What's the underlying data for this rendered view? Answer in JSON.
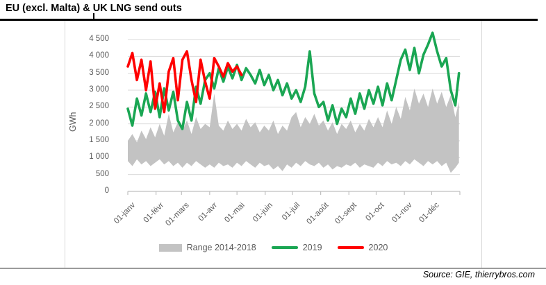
{
  "title": "EU (excl. Malta) & UK LNG send outs",
  "source_note": "Source: GIE, thierrybros.com",
  "colors": {
    "grid": "#D9D9D9",
    "axis": "#BFBFBF",
    "labels": "#595959",
    "band": "#C3C3C3",
    "green_2019": "#1AA653",
    "red_2020": "#FF0000",
    "title_rule": "#000000",
    "frame": "#D9D9D9",
    "bottom_rule": "#9B9B9B"
  },
  "y_axis": {
    "label": "GWh",
    "ticks": [
      "4 500",
      "4 000",
      "3 500",
      "3 000",
      "2 500",
      "2 000",
      "1 500",
      "1 000",
      "500",
      "0"
    ]
  },
  "x_axis": {
    "ticks": [
      "01-janv",
      "01-févr",
      "01-mars",
      "01-avr",
      "01-mai",
      "01-juin",
      "01-juil",
      "01-août",
      "01-sept",
      "01-oct",
      "01-nov",
      "01-déc"
    ]
  },
  "legend": [
    {
      "label": "Range 2014-2018",
      "color": "#C3C3C3",
      "type": "band"
    },
    {
      "label": "2019",
      "color": "#1AA653",
      "type": "line"
    },
    {
      "label": "2020",
      "color": "#FF0000",
      "type": "line"
    }
  ],
  "chart_data": {
    "type": "line",
    "title": "EU (excl. Malta) & UK LNG send outs",
    "xlabel": "",
    "ylabel": "GWh",
    "ylim": [
      0,
      4750
    ],
    "y_tick_step": 500,
    "grid": "horizontal",
    "legend_position": "bottom",
    "x_unit": "day_of_year",
    "x_tick_labels": [
      "01-janv",
      "01-févr",
      "01-mars",
      "01-avr",
      "01-mai",
      "01-juin",
      "01-juil",
      "01-août",
      "01-sept",
      "01-oct",
      "01-nov",
      "01-déc"
    ],
    "x_tick_days": [
      1,
      32,
      60,
      91,
      121,
      152,
      182,
      213,
      244,
      274,
      305,
      335,
      366
    ],
    "days": [
      1,
      6,
      11,
      16,
      21,
      26,
      31,
      36,
      41,
      46,
      51,
      56,
      61,
      66,
      71,
      76,
      81,
      86,
      91,
      96,
      101,
      106,
      111,
      116,
      121,
      126,
      131,
      136,
      141,
      146,
      151,
      156,
      161,
      166,
      171,
      176,
      181,
      186,
      191,
      196,
      201,
      206,
      211,
      216,
      221,
      226,
      231,
      236,
      241,
      246,
      251,
      256,
      261,
      266,
      271,
      276,
      281,
      286,
      291,
      296,
      301,
      306,
      311,
      316,
      321,
      326,
      331,
      336,
      341,
      346,
      351,
      356,
      361,
      365
    ],
    "series": [
      {
        "name": "Range 2014-2018",
        "type": "band",
        "color": "#C3C3C3",
        "min": [
          900,
          750,
          950,
          800,
          900,
          750,
          850,
          950,
          800,
          900,
          750,
          850,
          700,
          850,
          750,
          900,
          800,
          700,
          800,
          700,
          850,
          750,
          800,
          700,
          850,
          750,
          900,
          800,
          700,
          850,
          750,
          800,
          650,
          750,
          600,
          800,
          700,
          850,
          750,
          900,
          800,
          750,
          850,
          700,
          800,
          650,
          750,
          700,
          800,
          750,
          850,
          700,
          800,
          750,
          700,
          850,
          750,
          900,
          800,
          850,
          750,
          900,
          800,
          950,
          850,
          750,
          900,
          800,
          900,
          750,
          850,
          550,
          700,
          850
        ],
        "max": [
          1500,
          1700,
          1450,
          1800,
          1550,
          1900,
          1600,
          2000,
          1650,
          2300,
          1750,
          2050,
          1800,
          2100,
          1700,
          2200,
          1850,
          2000,
          1900,
          2900,
          1950,
          1800,
          2100,
          1850,
          2000,
          1800,
          2150,
          1900,
          2050,
          1750,
          1950,
          1800,
          2100,
          1700,
          1950,
          1800,
          2200,
          2350,
          1900,
          2200,
          2000,
          2300,
          1950,
          2100,
          1800,
          2050,
          1700,
          2000,
          1850,
          2100,
          1750,
          2000,
          1800,
          2150,
          1900,
          2200,
          1900,
          2400,
          2000,
          2500,
          2150,
          2800,
          2400,
          3050,
          2600,
          2900,
          2500,
          3050,
          2600,
          2950,
          2500,
          2850,
          2200,
          2650
        ]
      },
      {
        "name": "2019",
        "type": "line",
        "color": "#1AA653",
        "values": [
          2450,
          1950,
          2750,
          2250,
          2900,
          2350,
          2950,
          2200,
          3050,
          2400,
          2950,
          2100,
          1850,
          2650,
          2100,
          3100,
          2600,
          3300,
          3500,
          3050,
          3650,
          3250,
          3700,
          3350,
          3750,
          3300,
          3650,
          3450,
          3200,
          3600,
          3150,
          3450,
          3000,
          3300,
          2850,
          3200,
          2750,
          3000,
          2650,
          3100,
          4150,
          2900,
          2500,
          2650,
          2100,
          2550,
          2000,
          2450,
          2200,
          2750,
          2300,
          2900,
          2450,
          3000,
          2600,
          3100,
          2550,
          3200,
          2700,
          3300,
          3900,
          4200,
          3600,
          4250,
          3500,
          4050,
          4350,
          4700,
          4150,
          3700,
          3950,
          3000,
          2550,
          3500
        ]
      },
      {
        "name": "2020",
        "type": "line",
        "color": "#FF0000",
        "days": [
          1,
          6,
          11,
          16,
          21,
          26,
          31,
          36,
          41,
          46,
          51,
          56,
          61,
          66,
          71,
          76,
          81,
          86,
          91,
          96,
          101,
          106,
          111,
          116,
          121,
          126
        ],
        "values": [
          3700,
          4100,
          3300,
          3900,
          3000,
          3850,
          2450,
          3200,
          2350,
          3550,
          3950,
          2700,
          3900,
          4150,
          3300,
          2650,
          3900,
          3250,
          2750,
          3950,
          3700,
          3400,
          3800,
          3550,
          3700,
          3450
        ]
      }
    ]
  }
}
